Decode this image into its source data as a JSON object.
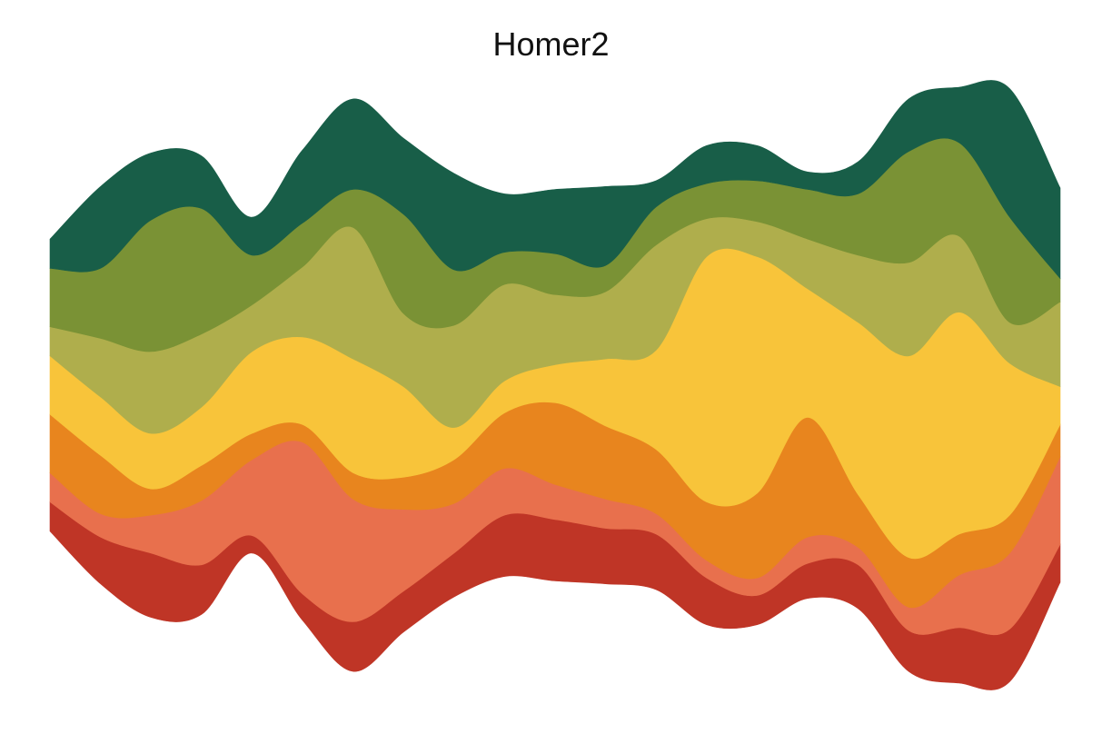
{
  "title": "Homer2",
  "chart_data": {
    "type": "area",
    "layout": "streamgraph",
    "title": "Homer2",
    "xlabel": "",
    "ylabel": "",
    "grid": false,
    "legend": "none",
    "axes_visible": false,
    "x": [
      1,
      2,
      3,
      4,
      5,
      6,
      7,
      8,
      9,
      10,
      11,
      12,
      13,
      14,
      15,
      16,
      17,
      18,
      19,
      20,
      21
    ],
    "series": [
      {
        "color": "#BF3526",
        "values": [
          1.0,
          1.6,
          2.2,
          1.7,
          0.6,
          0.9,
          1.7,
          1.4,
          1.5,
          2.1,
          2.1,
          1.9,
          1.9,
          1.6,
          1.0,
          1.2,
          1.5,
          1.4,
          1.9,
          1.8,
          1.3
        ]
      },
      {
        "color": "#E8704D",
        "values": [
          1.0,
          0.8,
          1.3,
          2.2,
          2.6,
          5.2,
          4.2,
          2.8,
          1.7,
          1.6,
          1.2,
          1.0,
          0.7,
          0.6,
          0.6,
          0.9,
          0.6,
          0.8,
          1.8,
          2.6,
          3.0
        ]
      },
      {
        "color": "#E8851E",
        "values": [
          2.0,
          2.0,
          0.9,
          1.2,
          0.9,
          0.6,
          0.9,
          1.1,
          1.5,
          1.9,
          2.8,
          2.5,
          2.2,
          2.0,
          2.9,
          4.1,
          1.8,
          1.7,
          1.4,
          1.3,
          1.1
        ]
      },
      {
        "color": "#F8C43A",
        "values": [
          2.0,
          2.0,
          1.9,
          2.0,
          2.8,
          3.0,
          3.9,
          3.1,
          1.1,
          1.1,
          1.3,
          2.3,
          3.4,
          8.4,
          8.1,
          4.4,
          5.9,
          6.9,
          7.6,
          5.2,
          1.3
        ]
      },
      {
        "color": "#AFAE4C",
        "values": [
          1.0,
          2.0,
          2.8,
          2.5,
          1.6,
          2.4,
          4.5,
          2.5,
          3.5,
          3.3,
          2.4,
          2.3,
          3.6,
          1.3,
          1.2,
          1.7,
          2.3,
          3.2,
          2.6,
          1.4,
          2.9
        ]
      },
      {
        "color": "#7A9235",
        "values": [
          2.0,
          2.4,
          4.5,
          4.3,
          1.7,
          1.5,
          1.3,
          3.4,
          1.9,
          1.1,
          1.4,
          0.9,
          1.3,
          1.2,
          1.4,
          1.7,
          2.1,
          3.8,
          3.2,
          3.6,
          0.8
        ]
      },
      {
        "color": "#185E48",
        "values": [
          1.0,
          2.8,
          2.3,
          1.8,
          1.3,
          2.5,
          3.1,
          2.6,
          3.3,
          2.0,
          2.2,
          2.7,
          0.9,
          1.3,
          1.2,
          0.6,
          1.1,
          1.8,
          1.9,
          4.4,
          3.1
        ]
      }
    ]
  }
}
